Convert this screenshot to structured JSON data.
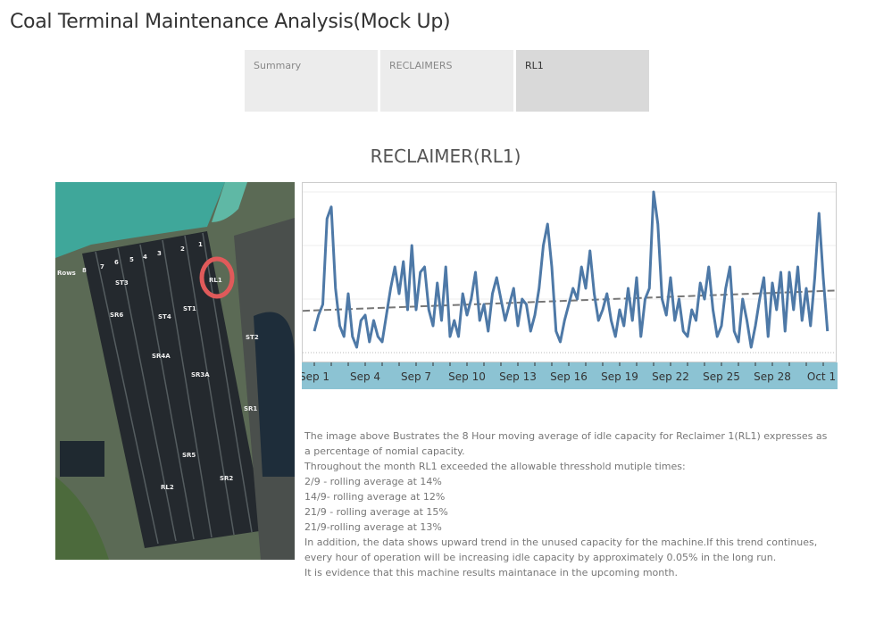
{
  "title": "Coal Terminal Maintenance Analysis(Mock Up)",
  "tabs": [
    {
      "label": "Summary",
      "active": false
    },
    {
      "label": "RECLAIMERS",
      "active": false
    },
    {
      "label": "RL1",
      "active": true
    }
  ],
  "subtitle": "RECLAIMER(RL1)",
  "map": {
    "labels": [
      "Rows",
      "8",
      "7",
      "6",
      "5",
      "4",
      "3",
      "2",
      "1",
      "RL1",
      "ST3",
      "ST1",
      "SR6",
      "ST4",
      "ST2",
      "SR4A",
      "SR3A",
      "SR1",
      "SR5",
      "SR2",
      "RL2"
    ],
    "highlight_color": "#e05a5a"
  },
  "chart_data": {
    "type": "line",
    "title": "",
    "xlabel": "",
    "ylabel": "",
    "x_tick_labels": [
      "Sep 1",
      "Sep 4",
      "Sep 7",
      "Sep 10",
      "Sep 13",
      "Sep 16",
      "Sep 19",
      "Sep 22",
      "Sep 25",
      "Sep 28",
      "Oct 1"
    ],
    "x_start": "Sep 1 00:00",
    "interval_hours": 6,
    "y_unit": "%",
    "ylim": [
      0,
      16
    ],
    "y_gridlines": [
      5,
      10,
      15
    ],
    "y_tick_labels_shown": false,
    "series": [
      {
        "color": "#4e79a7",
        "values": [
          2.0,
          3.5,
          4.5,
          12.5,
          13.6,
          6,
          2.5,
          1.5,
          5.5,
          1.5,
          0.5,
          3.0,
          3.5,
          1.0,
          3.0,
          1.5,
          1.0,
          3.5,
          6,
          8,
          5.5,
          8.5,
          4,
          10,
          4,
          7.5,
          8,
          4,
          2.5,
          6.5,
          3,
          8,
          1.5,
          3,
          1.5,
          5.5,
          3.5,
          5,
          7.5,
          3,
          4.5,
          2,
          5.5,
          7,
          5,
          3,
          4.5,
          6,
          2.5,
          5,
          4.5,
          2,
          3.5,
          6,
          10,
          12,
          8,
          2,
          1,
          3,
          4.5,
          6,
          5,
          8,
          6,
          9.5,
          5.5,
          3,
          4,
          5.5,
          3,
          1.5,
          4,
          2.5,
          6,
          3,
          7,
          1.5,
          5,
          6,
          15,
          12,
          5,
          3.5,
          7,
          3,
          5,
          2,
          1.5,
          4,
          3,
          6.5,
          5,
          8,
          4,
          1.5,
          2.5,
          6,
          8,
          2,
          1,
          5,
          3,
          0.5,
          2.5,
          5,
          7,
          1.5,
          6.5,
          4,
          7.5,
          2,
          7.5,
          4,
          8,
          3,
          6,
          2.5,
          7,
          13,
          7,
          2
        ]
      }
    ],
    "trend_line": {
      "start": 3.9,
      "end": 5.8,
      "color": "#777777",
      "style": "dashed"
    },
    "axis_band_color": "#8cc3d3",
    "grid": true
  },
  "description": [
    "The image above Bustrates the 8 Hour moving average of idle capacity for Reclaimer 1(RL1) expresses as",
    "a percentage of nomial capacity.",
    "Throughout the month RL1 exceeded the allowable thresshold mutiple times:",
    "2/9 - rolling average at 14%",
    "14/9- rolling average at 12%",
    "21/9 - rolling average at 15%",
    "21/9-rolling average at 13%",
    "In addition, the data shows upward trend in the unused capacity for the machine.If this trend continues,",
    "every hour of operation will be increasing idle capacity by approximately 0.05% in the long run.",
    "It is evidence that this machine results maintanace in the upcoming month."
  ]
}
